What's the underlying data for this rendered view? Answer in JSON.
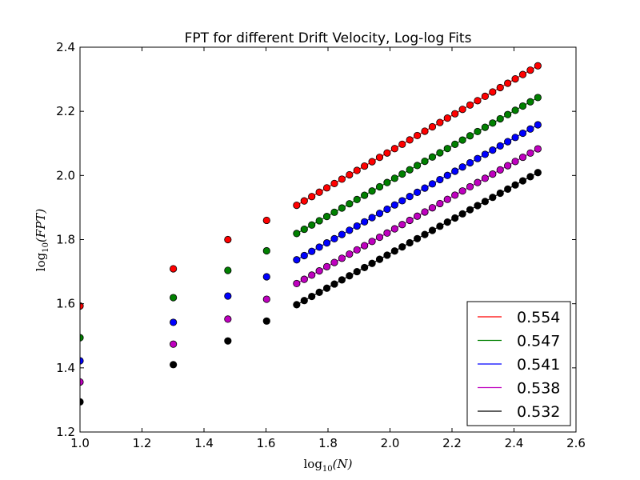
{
  "chart_data": {
    "type": "scatter",
    "title": "FPT for different Drift Velocity, Log-log Fits",
    "xlabel": "log10(N)",
    "ylabel": "log10(FPT)",
    "xlim": [
      1.0,
      2.6
    ],
    "ylim": [
      1.2,
      2.4
    ],
    "xticks": [
      "1.0",
      "1.2",
      "1.4",
      "1.6",
      "1.8",
      "2.0",
      "2.2",
      "2.4",
      "2.6"
    ],
    "yticks": [
      "1.2",
      "1.4",
      "1.6",
      "1.8",
      "2.0",
      "2.2",
      "2.4"
    ],
    "grid": false,
    "legend_position": "bottom-right",
    "x_sparse": [
      1.0,
      1.301,
      1.477,
      1.602
    ],
    "x_fit_start": 1.699,
    "x_fit_end": 2.477,
    "x_fit_points": 33,
    "series": [
      {
        "name": "0.554",
        "color": "#ff0000",
        "sparse_y": [
          1.593,
          1.709,
          1.8,
          1.86
        ],
        "fit_y": [
          1.907,
          2.342
        ]
      },
      {
        "name": "0.547",
        "color": "#008000",
        "sparse_y": [
          1.494,
          1.619,
          1.704,
          1.765
        ],
        "fit_y": [
          1.819,
          2.243
        ]
      },
      {
        "name": "0.541",
        "color": "#0000ff",
        "sparse_y": [
          1.422,
          1.542,
          1.624,
          1.684
        ],
        "fit_y": [
          1.737,
          2.158
        ]
      },
      {
        "name": "0.538",
        "color": "#bf00bf",
        "sparse_y": [
          1.356,
          1.474,
          1.552,
          1.614
        ],
        "fit_y": [
          1.663,
          2.083
        ]
      },
      {
        "name": "0.532",
        "color": "#000000",
        "sparse_y": [
          1.294,
          1.41,
          1.484,
          1.546
        ],
        "fit_y": [
          1.597,
          2.009
        ]
      }
    ]
  }
}
